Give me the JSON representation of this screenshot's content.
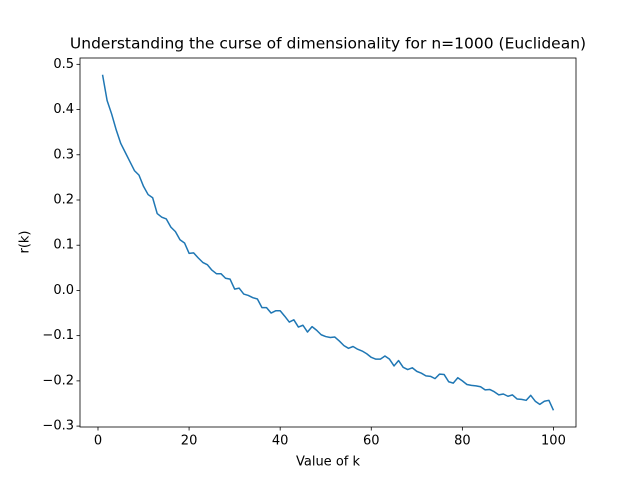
{
  "chart_data": {
    "type": "line",
    "title": "Understanding the curse of dimensionality for n=1000 (Euclidean)",
    "x_label": "Value of k",
    "y_label": "r(k)",
    "x": [
      1,
      2,
      3,
      4,
      5,
      6,
      7,
      8,
      9,
      10,
      11,
      12,
      13,
      14,
      15,
      16,
      17,
      18,
      19,
      20,
      21,
      22,
      23,
      24,
      25,
      26,
      27,
      28,
      29,
      30,
      31,
      32,
      33,
      34,
      35,
      36,
      37,
      38,
      39,
      40,
      41,
      42,
      43,
      44,
      45,
      46,
      47,
      48,
      49,
      50,
      51,
      52,
      53,
      54,
      55,
      56,
      57,
      58,
      59,
      60,
      61,
      62,
      63,
      64,
      65,
      66,
      67,
      68,
      69,
      70,
      71,
      72,
      73,
      74,
      75,
      76,
      77,
      78,
      79,
      80,
      81,
      82,
      83,
      84,
      85,
      86,
      87,
      88,
      89,
      90,
      91,
      92,
      93,
      94,
      95,
      96,
      97,
      98,
      99,
      100
    ],
    "series": [
      {
        "color": "#1f77b4",
        "values": [
          0.477,
          0.42,
          0.39,
          0.355,
          0.325,
          0.305,
          0.285,
          0.265,
          0.255,
          0.23,
          0.212,
          0.205,
          0.17,
          0.162,
          0.158,
          0.14,
          0.13,
          0.112,
          0.105,
          0.082,
          0.083,
          0.072,
          0.062,
          0.057,
          0.045,
          0.037,
          0.037,
          0.027,
          0.025,
          0.003,
          0.005,
          -0.008,
          -0.011,
          -0.016,
          -0.019,
          -0.038,
          -0.038,
          -0.05,
          -0.045,
          -0.045,
          -0.057,
          -0.07,
          -0.065,
          -0.081,
          -0.077,
          -0.092,
          -0.08,
          -0.088,
          -0.098,
          -0.102,
          -0.104,
          -0.103,
          -0.112,
          -0.122,
          -0.128,
          -0.124,
          -0.13,
          -0.134,
          -0.14,
          -0.148,
          -0.152,
          -0.152,
          -0.145,
          -0.152,
          -0.167,
          -0.155,
          -0.17,
          -0.175,
          -0.171,
          -0.179,
          -0.183,
          -0.189,
          -0.19,
          -0.195,
          -0.185,
          -0.186,
          -0.202,
          -0.205,
          -0.193,
          -0.2,
          -0.208,
          -0.21,
          -0.211,
          -0.213,
          -0.22,
          -0.219,
          -0.224,
          -0.231,
          -0.229,
          -0.234,
          -0.231,
          -0.24,
          -0.241,
          -0.243,
          -0.232,
          -0.245,
          -0.252,
          -0.245,
          -0.243,
          -0.265
        ]
      }
    ],
    "xlim": [
      -3.95,
      104.95
    ],
    "xticks": [
      0,
      20,
      40,
      60,
      80,
      100
    ],
    "ylim": [
      -0.302,
      0.514
    ],
    "yticks": [
      {
        "value": -0.3,
        "label": "−0.3"
      },
      {
        "value": -0.2,
        "label": "−0.2"
      },
      {
        "value": -0.1,
        "label": "−0.1"
      },
      {
        "value": 0,
        "label": "0.0"
      },
      0.1,
      0.2,
      0.3,
      0.4,
      0.5
    ],
    "grid": false
  }
}
